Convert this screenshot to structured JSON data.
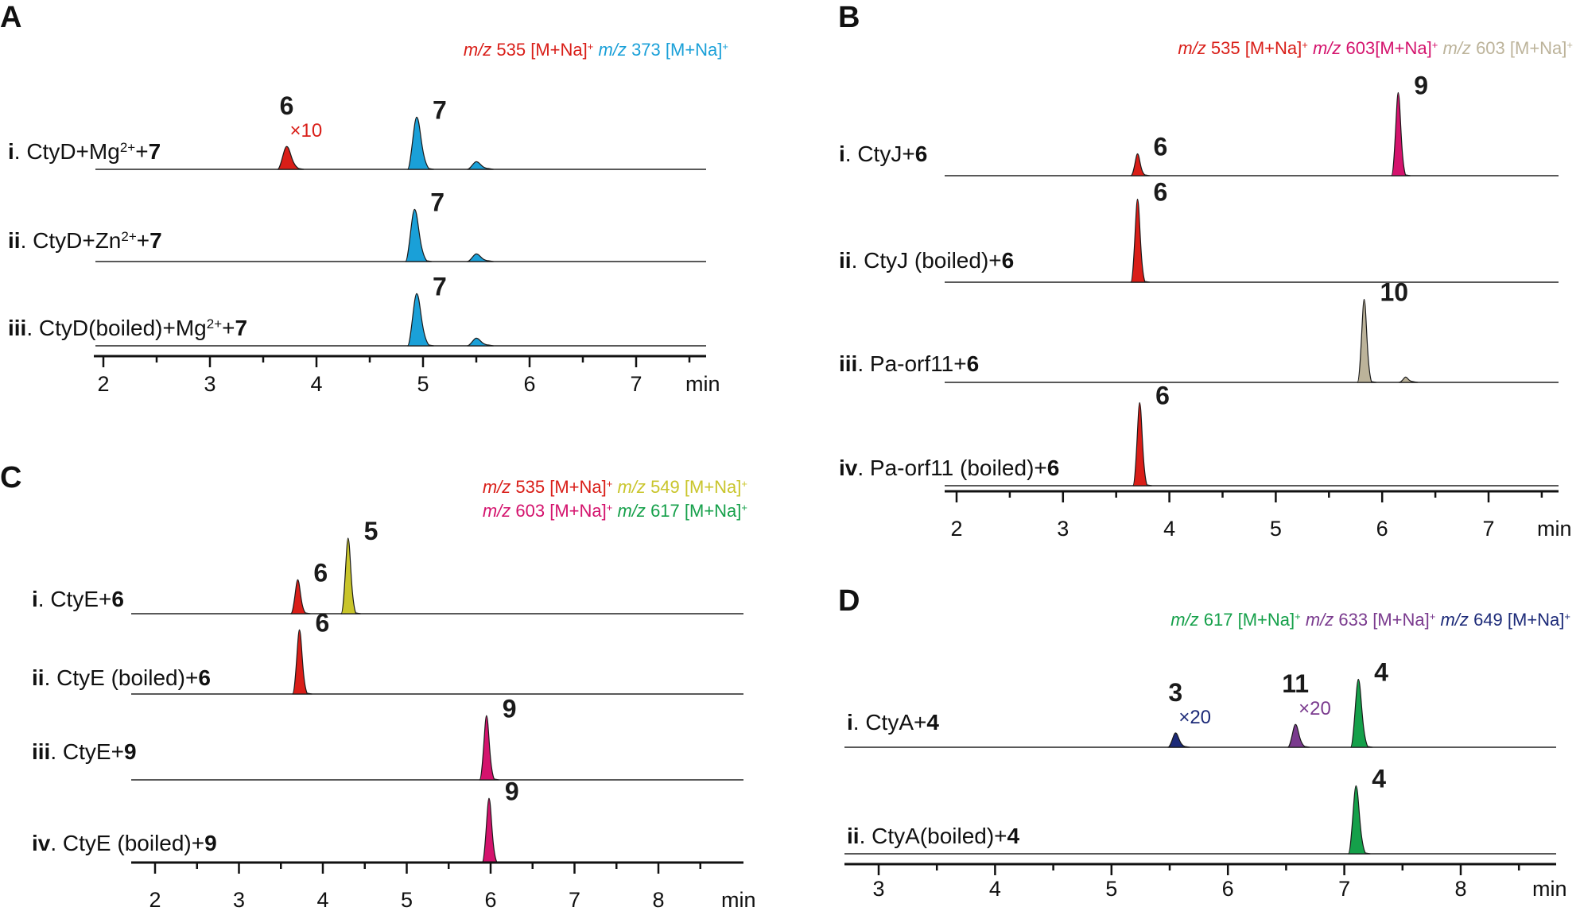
{
  "figure_units": "min",
  "chart_data": [
    {
      "type": "line",
      "panel": "A",
      "xlabel": "min",
      "xlim": [
        1.8,
        7.8
      ],
      "ticks": [
        2,
        3,
        4,
        5,
        6,
        7
      ],
      "legend": [
        {
          "prefix": "m/z",
          "label": "535 [M+Na]",
          "sup": "+",
          "color": "#d91e18"
        },
        {
          "prefix": "m/z",
          "label": "373 [M+Na]",
          "sup": "+",
          "color": "#1aa0d8"
        }
      ],
      "traces": [
        {
          "roman": "i",
          "parts": [
            {
              "t": ". CtyD+Mg",
              "b": false
            },
            {
              "t": "2+",
              "b": false,
              "sup": true
            },
            {
              "t": "+",
              "b": false
            },
            {
              "t": "7",
              "b": true
            }
          ],
          "peaks": [
            {
              "x": 3.72,
              "h": 0.36,
              "color": "#d91e18",
              "label": "6",
              "note": "×10"
            },
            {
              "x": 4.94,
              "h": 0.82,
              "color": "#1aa0d8",
              "label": "7"
            },
            {
              "x": 5.5,
              "h": 0.12,
              "color": "#1aa0d8"
            }
          ]
        },
        {
          "roman": "ii",
          "parts": [
            {
              "t": ". CtyD+Zn",
              "b": false
            },
            {
              "t": "2+",
              "b": false,
              "sup": true
            },
            {
              "t": "+",
              "b": false
            },
            {
              "t": "7",
              "b": true
            }
          ],
          "peaks": [
            {
              "x": 4.92,
              "h": 0.82,
              "color": "#1aa0d8",
              "label": "7"
            },
            {
              "x": 5.5,
              "h": 0.12,
              "color": "#1aa0d8"
            }
          ]
        },
        {
          "roman": "iii",
          "parts": [
            {
              "t": ". CtyD(boiled)+Mg",
              "b": false
            },
            {
              "t": "2+",
              "b": false,
              "sup": true
            },
            {
              "t": "+",
              "b": false
            },
            {
              "t": "7",
              "b": true
            }
          ],
          "peaks": [
            {
              "x": 4.94,
              "h": 0.82,
              "color": "#1aa0d8",
              "label": "7"
            },
            {
              "x": 5.5,
              "h": 0.12,
              "color": "#1aa0d8"
            }
          ]
        }
      ]
    },
    {
      "type": "line",
      "panel": "B",
      "xlabel": "min",
      "xlim": [
        1.8,
        7.8
      ],
      "ticks": [
        2,
        3,
        4,
        5,
        6,
        7
      ],
      "legend": [
        {
          "prefix": "m/z",
          "label": "535 [M+Na]",
          "sup": "+",
          "color": "#d91e18"
        },
        {
          "prefix": "m/z",
          "label": "603[M+Na]",
          "sup": "+",
          "color": "#d4136d"
        },
        {
          "prefix": "m/z",
          "label": "603 [M+Na]",
          "sup": "+",
          "color": "#bcb39a"
        }
      ],
      "traces": [
        {
          "roman": "i",
          "parts": [
            {
              "t": ". CtyJ+",
              "b": false
            },
            {
              "t": "6",
              "b": true
            }
          ],
          "peaks": [
            {
              "x": 3.7,
              "h": 0.25,
              "color": "#d91e18",
              "label": "6"
            },
            {
              "x": 6.15,
              "h": 0.95,
              "color": "#d4136d",
              "label": "9"
            }
          ]
        },
        {
          "roman": "ii",
          "parts": [
            {
              "t": ". CtyJ (boiled)+",
              "b": false
            },
            {
              "t": "6",
              "b": true
            }
          ],
          "peaks": [
            {
              "x": 3.7,
              "h": 0.95,
              "color": "#d91e18",
              "label": "6"
            }
          ]
        },
        {
          "roman": "iii",
          "parts": [
            {
              "t": ". Pa-orf11+",
              "b": false
            },
            {
              "t": "6",
              "b": true
            }
          ],
          "peaks": [
            {
              "x": 5.83,
              "h": 0.95,
              "color": "#bcb39a",
              "label": "10"
            },
            {
              "x": 6.22,
              "h": 0.06,
              "color": "#bcb39a"
            }
          ]
        },
        {
          "roman": "iv",
          "parts": [
            {
              "t": ". Pa-orf11 (boiled)+",
              "b": false
            },
            {
              "t": "6",
              "b": true
            }
          ],
          "peaks": [
            {
              "x": 3.72,
              "h": 0.95,
              "color": "#d91e18",
              "label": "6"
            }
          ]
        }
      ]
    },
    {
      "type": "line",
      "panel": "C",
      "xlabel": "min",
      "xlim": [
        1.75,
        9.2
      ],
      "ticks": [
        2,
        3,
        4,
        5,
        6,
        7,
        8
      ],
      "legend": [
        {
          "prefix": "m/z",
          "label": "535 [M+Na]",
          "sup": "+",
          "color": "#d91e18"
        },
        {
          "prefix": "m/z",
          "label": "549 [M+Na]",
          "sup": "+",
          "color": "#c9c52b"
        },
        {
          "prefix": "m/z",
          "label": "603 [M+Na]",
          "sup": "+",
          "color": "#d4136d"
        },
        {
          "prefix": "m/z",
          "label": "617 [M+Na]",
          "sup": "+",
          "color": "#15a04a"
        }
      ],
      "traces": [
        {
          "roman": "i",
          "parts": [
            {
              "t": ". CtyE+",
              "b": false
            },
            {
              "t": "6",
              "b": true
            }
          ],
          "peaks": [
            {
              "x": 3.7,
              "h": 0.45,
              "color": "#d91e18",
              "label": "6"
            },
            {
              "x": 4.3,
              "h": 1.0,
              "color": "#c9c52b",
              "label": "5"
            }
          ]
        },
        {
          "roman": "ii",
          "parts": [
            {
              "t": ". CtyE (boiled)+",
              "b": false
            },
            {
              "t": "6",
              "b": true
            }
          ],
          "peaks": [
            {
              "x": 3.72,
              "h": 0.85,
              "color": "#d91e18",
              "label": "6"
            }
          ]
        },
        {
          "roman": "iii",
          "parts": [
            {
              "t": ". CtyE+",
              "b": false
            },
            {
              "t": "9",
              "b": true
            }
          ],
          "peaks": [
            {
              "x": 5.95,
              "h": 0.85,
              "color": "#d4136d",
              "label": "9"
            }
          ]
        },
        {
          "roman": "iv",
          "parts": [
            {
              "t": ". CtyE (boiled)+",
              "b": false
            },
            {
              "t": "9",
              "b": true
            }
          ],
          "peaks": [
            {
              "x": 5.98,
              "h": 0.85,
              "color": "#d4136d",
              "label": "9"
            }
          ]
        }
      ]
    },
    {
      "type": "line",
      "panel": "D",
      "xlabel": "min",
      "xlim": [
        2.85,
        8.8
      ],
      "ticks": [
        3,
        4,
        5,
        6,
        7,
        8
      ],
      "legend": [
        {
          "prefix": "m/z",
          "label": "617 [M+Na]",
          "sup": "+",
          "color": "#15a04a"
        },
        {
          "prefix": "m/z",
          "label": "633 [M+Na]",
          "sup": "+",
          "color": "#7a3a8e"
        },
        {
          "prefix": "m/z",
          "label": "649 [M+Na]",
          "sup": "+",
          "color": "#1c2a78"
        }
      ],
      "traces": [
        {
          "roman": "i",
          "parts": [
            {
              "t": ". CtyA+",
              "b": false
            },
            {
              "t": "4",
              "b": true
            }
          ],
          "peaks": [
            {
              "x": 5.55,
              "h": 0.2,
              "color": "#1c2a78",
              "label": "3",
              "note": "×20"
            },
            {
              "x": 6.58,
              "h": 0.32,
              "color": "#7a3a8e",
              "label": "11",
              "note": "×20"
            },
            {
              "x": 7.12,
              "h": 0.95,
              "color": "#15a04a",
              "label": "4"
            }
          ]
        },
        {
          "roman": "ii",
          "parts": [
            {
              "t": ". CtyA(boiled)+",
              "b": false
            },
            {
              "t": "4",
              "b": true
            }
          ],
          "peaks": [
            {
              "x": 7.1,
              "h": 0.95,
              "color": "#15a04a",
              "label": "4"
            }
          ]
        }
      ]
    }
  ]
}
